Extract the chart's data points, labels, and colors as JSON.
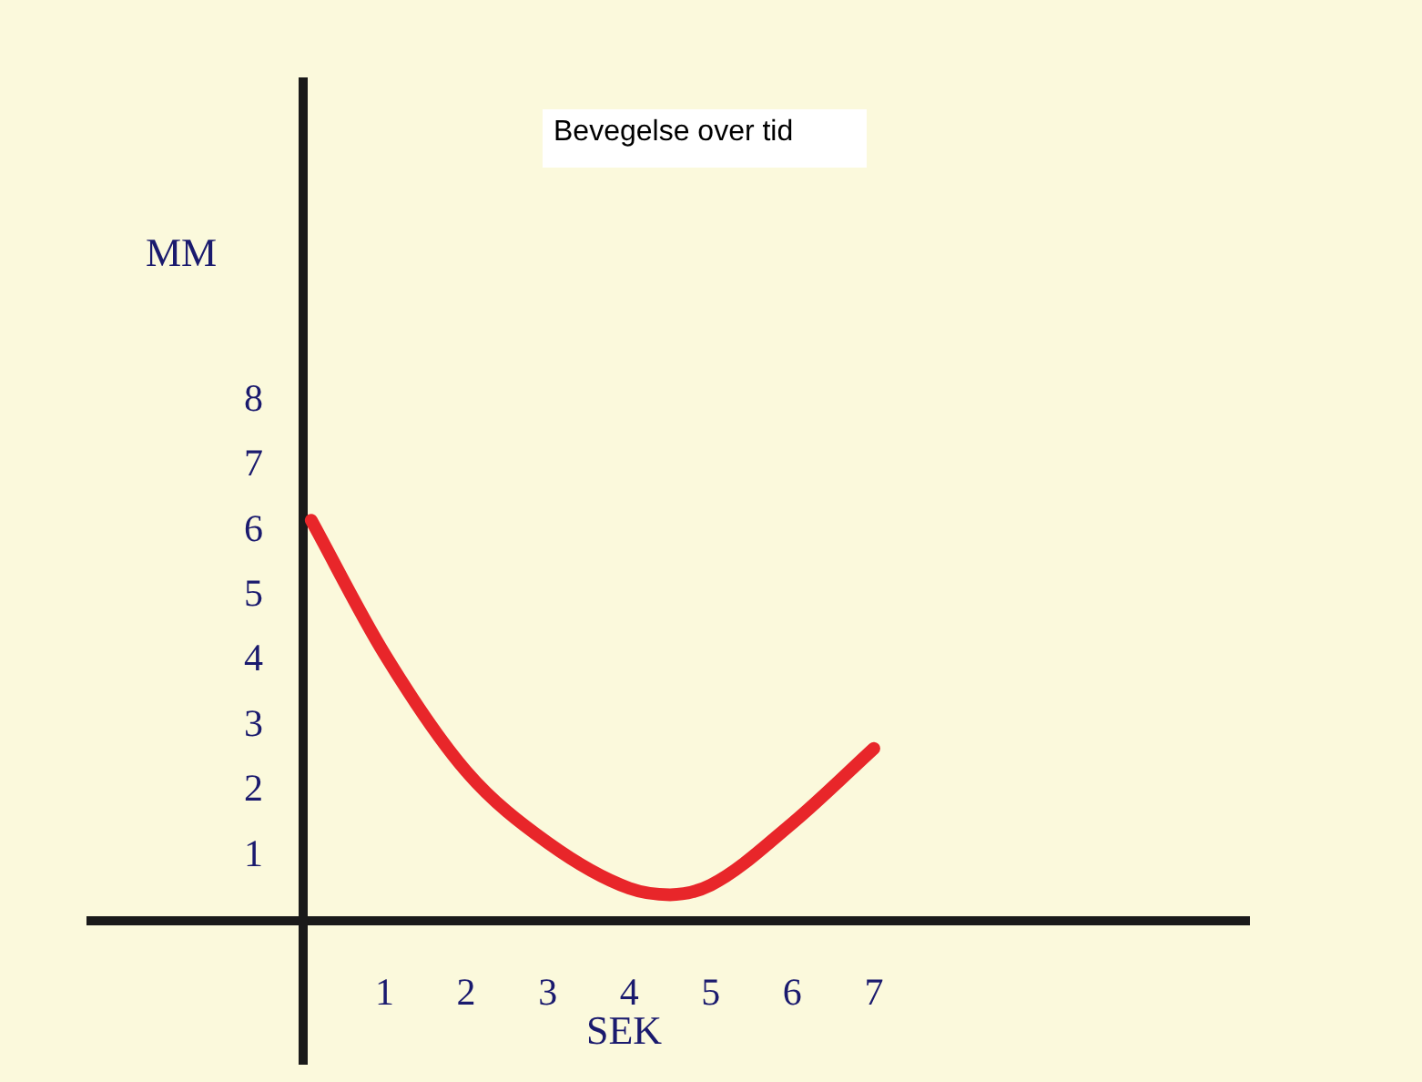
{
  "chart_data": {
    "type": "line",
    "title": "Bevegelse over tid",
    "xlabel": "SEK",
    "ylabel": "MM",
    "x": [
      0.1,
      1,
      2,
      3,
      4,
      4.5,
      5,
      6,
      7
    ],
    "series": [
      {
        "color": "#e8262a",
        "values": [
          6.16,
          4.1,
          2.3,
          1.2,
          0.5,
          0.4,
          0.55,
          1.5,
          2.65
        ]
      }
    ],
    "xlim": [
      -2.6,
      11.6
    ],
    "ylim": [
      -2.2,
      12.9
    ],
    "xticks": [
      1,
      2,
      3,
      4,
      5,
      6,
      7
    ],
    "yticks": [
      1,
      2,
      3,
      4,
      5,
      6,
      7,
      8
    ],
    "grid": false,
    "legend": false,
    "marker": "none",
    "line_style": "solid"
  }
}
